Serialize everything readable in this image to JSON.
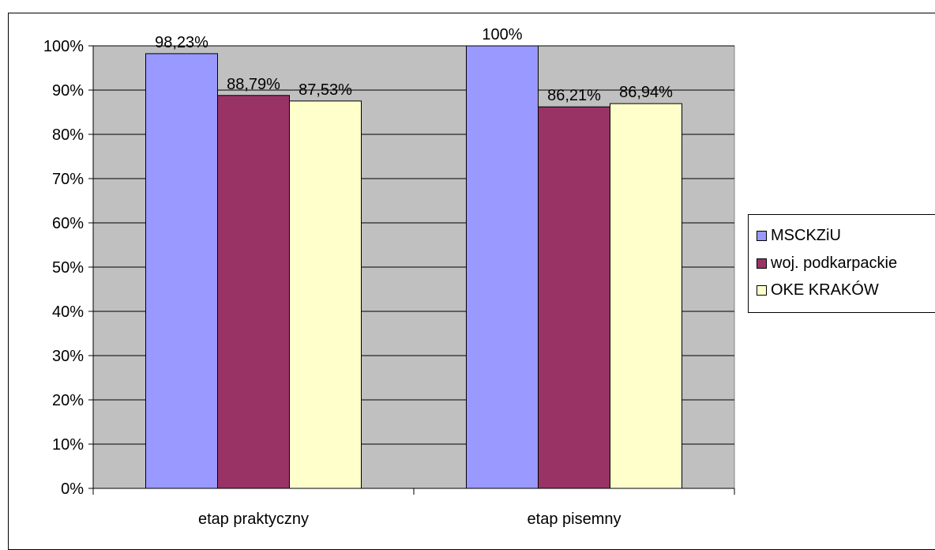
{
  "chart_data": {
    "type": "bar",
    "categories": [
      "etap praktyczny",
      "etap pisemny"
    ],
    "series": [
      {
        "name": "MSCKZiU",
        "values": [
          98.23,
          100
        ],
        "labels": [
          "98,23%",
          "100%"
        ],
        "color": "#9999FF"
      },
      {
        "name": "woj. podkarpackie",
        "values": [
          88.79,
          86.21
        ],
        "labels": [
          "88,79%",
          "86,21%"
        ],
        "color": "#993366"
      },
      {
        "name": "OKE KRAKÓW",
        "values": [
          87.53,
          86.94
        ],
        "labels": [
          "87,53%",
          "86,94%"
        ],
        "color": "#FFFFCC"
      }
    ],
    "yticks": [
      "0%",
      "10%",
      "20%",
      "30%",
      "40%",
      "50%",
      "60%",
      "70%",
      "80%",
      "90%",
      "100%"
    ],
    "ylim": [
      0,
      100
    ],
    "grid": true,
    "plot_background": "#C0C0C0",
    "legend_position": "right"
  }
}
